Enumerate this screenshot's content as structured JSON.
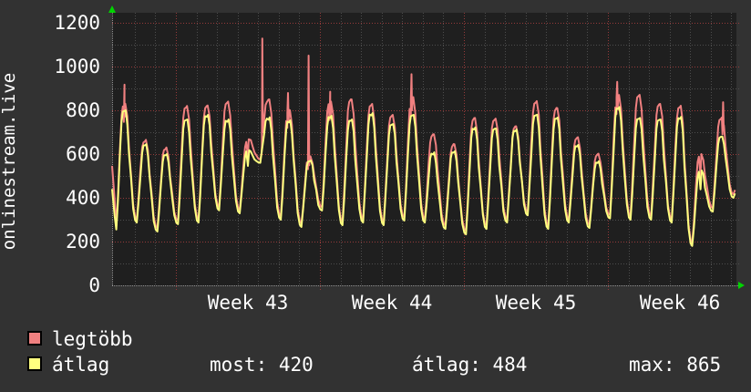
{
  "chart_data": {
    "type": "line",
    "title": "onlinestream.live",
    "x_tick_labels": [
      "Week 43",
      "Week 44",
      "Week 45",
      "Week 46"
    ],
    "y_ticks": [
      0,
      200,
      400,
      600,
      800,
      1000,
      1200
    ],
    "ylim": [
      0,
      1245
    ],
    "x_unit": "days",
    "x_span_days": 30.35,
    "week_line_days": [
      3,
      10,
      17,
      24
    ],
    "grid": "dotted",
    "legend_position": "bottom",
    "series": [
      {
        "name": "legtöbb",
        "color": "#f08080"
      },
      {
        "name": "átlag",
        "color": "#ffff7f"
      }
    ],
    "days": [
      {
        "t": 255,
        "pp": 830,
        "py": 800,
        "s": 917
      },
      {
        "t": 287,
        "pp": 665,
        "py": 645
      },
      {
        "t": 246,
        "pp": 630,
        "py": 600
      },
      {
        "t": 280,
        "pp": 820,
        "py": 758
      },
      {
        "t": 287,
        "pp": 822,
        "py": 779
      },
      {
        "t": 343,
        "pp": 840,
        "py": 758
      },
      {
        "t": 329,
        "pp": 668,
        "py": 618,
        "db": 1
      },
      {
        "t": 560,
        "pp": 850,
        "py": 768,
        "s": 1128,
        "so": 0.2
      },
      {
        "t": 300,
        "pp": 800,
        "py": 754,
        "s": 879,
        "so": 0.45
      },
      {
        "t": 267,
        "pp": 590,
        "py": 570,
        "s": 1050,
        "so": 0.45
      },
      {
        "t": 342,
        "pp": 840,
        "py": 775,
        "s": 885,
        "so": 0.5
      },
      {
        "t": 275,
        "pp": 850,
        "py": 758
      },
      {
        "t": 287,
        "pp": 829,
        "py": 787
      },
      {
        "t": 275,
        "pp": 779,
        "py": 737
      },
      {
        "t": 296,
        "pp": 860,
        "py": 779,
        "s": 965,
        "so": 0.45
      },
      {
        "t": 287,
        "pp": 691,
        "py": 608
      },
      {
        "t": 258,
        "pp": 645,
        "py": 613
      },
      {
        "t": 233,
        "pp": 765,
        "py": 722
      },
      {
        "t": 258,
        "pp": 762,
        "py": 717
      },
      {
        "t": 287,
        "pp": 727,
        "py": 712
      },
      {
        "t": 320,
        "pp": 842,
        "py": 780
      },
      {
        "t": 258,
        "pp": 810,
        "py": 767
      },
      {
        "t": 287,
        "pp": 677,
        "py": 642
      },
      {
        "t": 262,
        "pp": 602,
        "py": 567
      },
      {
        "t": 306,
        "pp": 870,
        "py": 815,
        "s": 930,
        "so": 0.45
      },
      {
        "t": 300,
        "pp": 871,
        "py": 765
      },
      {
        "t": 300,
        "pp": 829,
        "py": 758
      },
      {
        "t": 287,
        "pp": 821,
        "py": 770
      },
      {
        "t": 180,
        "pp": 600,
        "py": 525,
        "db": 1
      },
      {
        "t": 337,
        "pp": 767,
        "py": 680,
        "s": 837,
        "so": 0.6
      }
    ],
    "t_end": 400,
    "start": {
      "legtobb": 546,
      "atlag": 440
    },
    "end": {
      "legtobb": 436,
      "atlag": 420
    },
    "colors": {
      "page_bg": "#323232",
      "plot_bg": "#1f1f1f",
      "grid_major": "#963a3a",
      "grid_minor": "#4d4d4d",
      "axis": "#909090",
      "arrow": "#00d400",
      "text": "#ffffff"
    }
  },
  "stats": [
    {
      "text": "most: 420"
    },
    {
      "text": "átlag: 484"
    },
    {
      "text": "max: 865"
    }
  ]
}
